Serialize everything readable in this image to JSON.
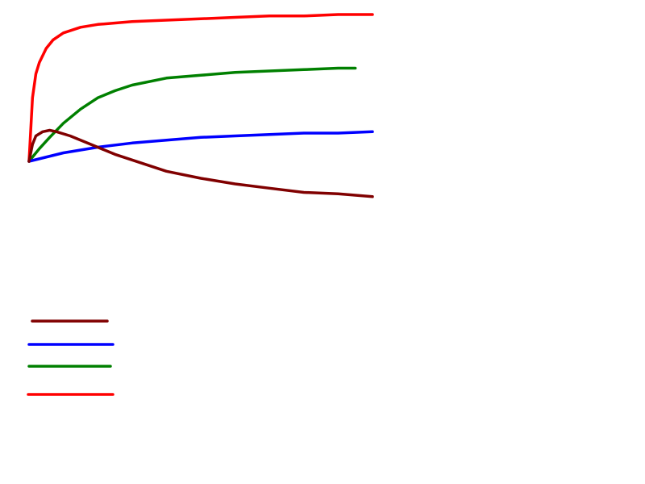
{
  "chart_data": {
    "type": "line",
    "title": "",
    "xlabel": "",
    "ylabel": "",
    "xlim": [
      0,
      100
    ],
    "ylim": [
      -100,
      100
    ],
    "grid": false,
    "legend": "bottom-left",
    "series": [
      {
        "color": "#ff0000",
        "x": [
          0,
          1,
          2,
          3,
          5,
          7,
          10,
          15,
          20,
          30,
          40,
          50,
          60,
          70,
          80,
          90,
          100
        ],
        "y": [
          0,
          45,
          62,
          70,
          80,
          86,
          91,
          95,
          97,
          99,
          100,
          101,
          102,
          103,
          103,
          104,
          104
        ]
      },
      {
        "color": "#008000",
        "x": [
          0,
          3,
          6,
          10,
          15,
          20,
          25,
          30,
          40,
          50,
          60,
          70,
          80,
          90,
          95
        ],
        "y": [
          0,
          9,
          17,
          27,
          37,
          45,
          50,
          54,
          59,
          61,
          63,
          64,
          65,
          66,
          66
        ]
      },
      {
        "color": "#0000ff",
        "x": [
          0,
          10,
          20,
          30,
          40,
          50,
          60,
          70,
          80,
          90,
          100
        ],
        "y": [
          0,
          6,
          10,
          13,
          15,
          17,
          18,
          19,
          20,
          20,
          21
        ]
      },
      {
        "color": "#800000",
        "x": [
          0,
          1,
          2,
          4,
          6,
          8,
          12,
          16,
          20,
          25,
          30,
          40,
          50,
          60,
          70,
          80,
          90,
          100
        ],
        "y": [
          0,
          12,
          18,
          21,
          22,
          21,
          18,
          14,
          10,
          5,
          1,
          -7,
          -12,
          -16,
          -19,
          -22,
          -23,
          -25
        ]
      }
    ],
    "legend_entries": [
      {
        "color": "#800000"
      },
      {
        "color": "#0000ff"
      },
      {
        "color": "#008000"
      },
      {
        "color": "#ff0000"
      }
    ]
  }
}
